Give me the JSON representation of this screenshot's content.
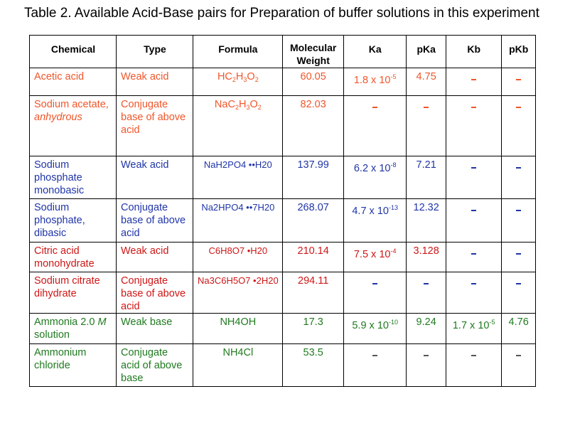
{
  "caption": "Table 2. Available Acid-Base pairs for Preparation of buffer solutions in this experiment",
  "headers": {
    "chemical": "Chemical",
    "type": "Type",
    "formula": "Formula",
    "mw_1": "Molecular",
    "mw_2": "Weight",
    "ka": "Ka",
    "pka": "pKa",
    "kb": "Kb",
    "pkb": "pKb"
  },
  "rows": [
    {
      "chemical": "Acetic acid",
      "type": "Weak acid",
      "formula_parts": [
        "HC",
        "2",
        "H",
        "3",
        "O",
        "2",
        ""
      ],
      "mw": "60.05",
      "ka_base": "1.8 x 10",
      "ka_exp": "-5",
      "pka": "4.75",
      "kb": "–",
      "pkb": "–",
      "color": "orange"
    },
    {
      "chemical_1": "Sodium acetate,",
      "chemical_2": "anhydrous",
      "type": "Conjugate base of above acid",
      "formula_parts": [
        "NaC",
        "2",
        "H",
        "3",
        "O",
        "2",
        ""
      ],
      "mw": "82.03",
      "ka": "–",
      "pka": "–",
      "kb": "–",
      "pkb": "–",
      "color": "orange"
    },
    {
      "chemical": "Sodium phosphate monobasic",
      "type": "Weak acid",
      "formula": "NaH2PO4 ••H20",
      "mw": "137.99",
      "ka_base": "6.2 x 10",
      "ka_exp": "-8",
      "pka": "7.21",
      "kb": "–",
      "pkb": "–",
      "color": "blue"
    },
    {
      "chemical": "Sodium phosphate, dibasic",
      "type": "Conjugate base of above acid",
      "formula": "Na2HPO4 ••7H20",
      "mw": "268.07",
      "ka_base": "4.7 x 10",
      "ka_exp": "-13",
      "pka": "12.32",
      "kb": "–",
      "pkb": "–",
      "color": "blue"
    },
    {
      "chemical": "Citric acid monohydrate",
      "type": "Weak acid",
      "formula": "C6H8O7 •H20",
      "mw": "210.14",
      "ka_base": "7.5 x 10",
      "ka_exp": "-4",
      "pka": "3.128",
      "kb": "–",
      "pkb": "–",
      "color": "red"
    },
    {
      "chemical": "Sodium citrate dihydrate",
      "type": "Conjugate base of above acid",
      "formula": "Na3C6H5O7 •2H20",
      "mw": "294.11",
      "ka": "–",
      "pka": "–",
      "kb": "–",
      "pkb": "–",
      "color": "red"
    },
    {
      "chemical_1": "Ammonia 2.0 ",
      "chemical_m": "M",
      "chemical_2": "solution",
      "type": "Weak base",
      "formula": "NH4OH",
      "mw": "17.3",
      "ka_base": "5.9 x 10",
      "ka_exp": "-10",
      "pka": "9.24",
      "kb_base": "1.7 x 10",
      "kb_exp": "-5",
      "pkb": "4.76",
      "color": "green"
    },
    {
      "chemical": "Ammonium chloride",
      "type": "Conjugate acid of above base",
      "formula": "NH4Cl",
      "mw": "53.5",
      "ka": "–",
      "pka": "–",
      "kb": "–",
      "pkb": "–",
      "color": "green"
    }
  ],
  "colors": {
    "orange": "#f0562a",
    "blue": "#2035a8",
    "red": "#cf1616",
    "green": "#1f7a1f"
  }
}
